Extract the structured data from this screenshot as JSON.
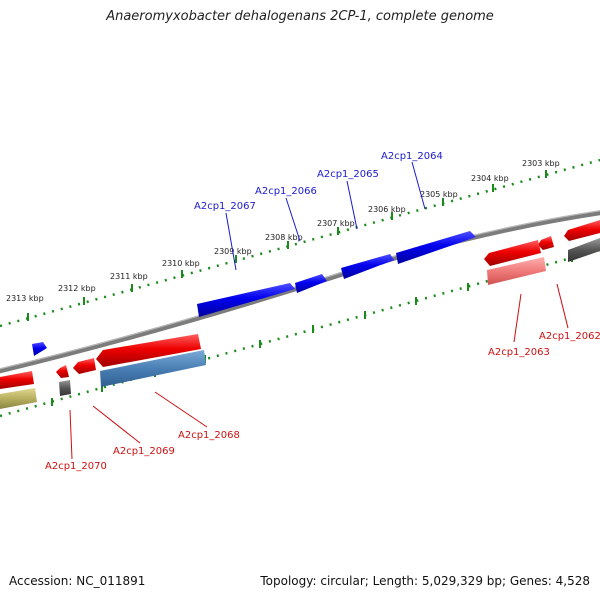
{
  "title": "Anaeromyxobacter dehalogenans 2CP-1, complete genome",
  "footer": {
    "accession": "Accession: NC_011891",
    "summary": "Topology: circular; Length: 5,029,329 bp; Genes: 4,528"
  },
  "ticks": [
    "2303 kbp",
    "2304 kbp",
    "2305 kbp",
    "2306 kbp",
    "2307 kbp",
    "2308 kbp",
    "2309 kbp",
    "2310 kbp",
    "2311 kbp",
    "2312 kbp",
    "2313 kbp"
  ],
  "genes_forward": [
    "A2cp1_2064",
    "A2cp1_2065",
    "A2cp1_2066",
    "A2cp1_2067"
  ],
  "genes_reverse": [
    "A2cp1_2062",
    "A2cp1_2063",
    "A2cp1_2068",
    "A2cp1_2069",
    "A2cp1_2070"
  ],
  "colors": {
    "forward_gene": "#0a0adc",
    "reverse_gene": "#e80000",
    "forward_label": "#1a1acc",
    "reverse_label": "#cc1010",
    "backbone": "#808080",
    "tick": "#1a8a1a",
    "cds_feature": "#4a7fb5",
    "rna_feature": "#b8b060",
    "dark_feature": "#555555"
  }
}
